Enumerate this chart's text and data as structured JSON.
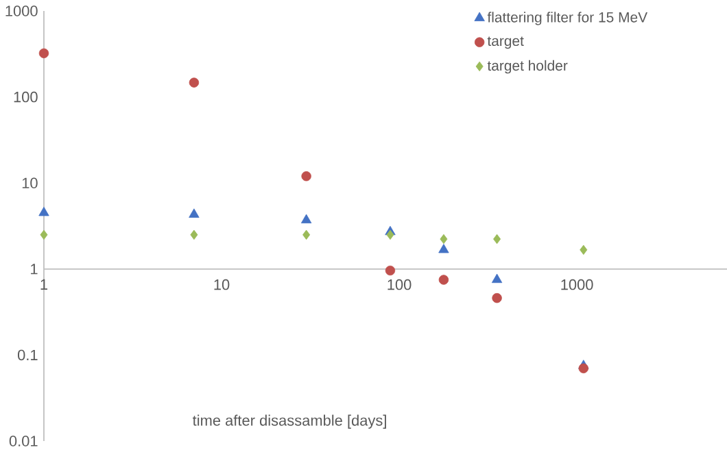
{
  "chart_data": {
    "type": "scatter",
    "xlabel": "time after disassamble [days]",
    "log": "xy",
    "legend": "top right",
    "xlim": [
      1,
      7000
    ],
    "ylim": [
      0.01,
      1000
    ],
    "xticks": [
      1,
      10,
      100,
      1000
    ],
    "yticks": [
      0.01,
      0.1,
      1,
      10,
      100,
      1000
    ],
    "series": [
      {
        "name": "flattering filter for 15 MeV",
        "color": "#4472c4",
        "marker": "triangle",
        "x": [
          1,
          7,
          30,
          89,
          178,
          355,
          1090
        ],
        "values": [
          4.5,
          4.3,
          3.7,
          2.7,
          1.67,
          0.75,
          0.075
        ]
      },
      {
        "name": "target",
        "color": "#c0504d",
        "marker": "circle",
        "x": [
          1,
          7,
          30,
          89,
          178,
          355,
          1090
        ],
        "values": [
          322,
          147,
          12,
          0.96,
          0.75,
          0.46,
          0.07
        ]
      },
      {
        "name": "target holder",
        "color": "#9bbb59",
        "marker": "diamond",
        "x": [
          1,
          7,
          30,
          89,
          178,
          355,
          1090
        ],
        "values": [
          2.5,
          2.5,
          2.5,
          2.5,
          2.23,
          2.23,
          1.67
        ]
      }
    ]
  }
}
